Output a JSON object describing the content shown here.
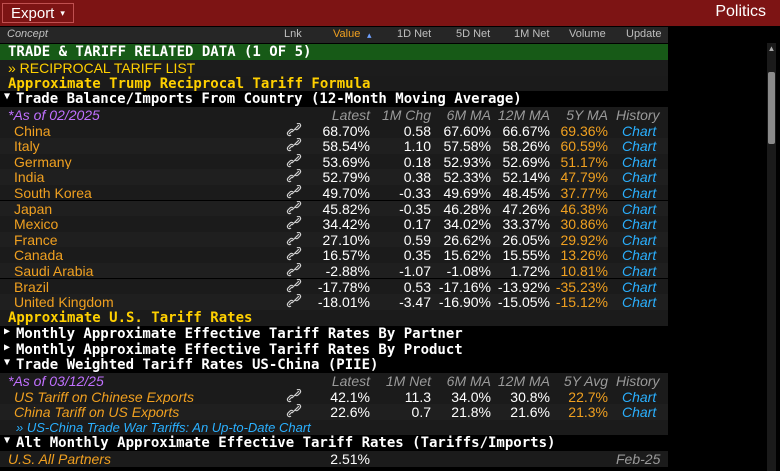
{
  "topbar": {
    "export_label": "Export",
    "export_caret": "▾",
    "title": "Politics"
  },
  "columns": {
    "concept": "Concept",
    "lnk": "Lnk",
    "value": "Value",
    "value_sort": "▴",
    "d1": "1D Net",
    "d5": "5D Net",
    "m1": "1M Net",
    "volume": "Volume",
    "update": "Update"
  },
  "sections": {
    "trade_title": "TRADE & TARIFF RELATED DATA (1 OF 5)",
    "reciprocal_link": "» RECIPROCAL TARIFF LIST",
    "approx_formula": "Approximate Trump Reciprocal Tariff Formula",
    "trade_balance": "Trade Balance/Imports From Country (12-Month Moving Average)",
    "approx_us": "Approximate U.S. Tariff Rates",
    "monthly_partner": "Monthly Approximate Effective Tariff Rates By Partner",
    "monthly_product": "Monthly Approximate Effective Tariff Rates By Product",
    "trade_weighted": "Trade Weighted Tariff Rates US-China (PIIE)",
    "us_china_link": "» US-China Trade War Tariffs: An Up-to-Date Chart",
    "alt_monthly": "Alt Monthly Approximate Effective Tariff Rates (Tariffs/Imports)"
  },
  "table1": {
    "as_of": "*As of 02/2025",
    "headers": [
      "Latest",
      "1M Chg",
      "6M MA",
      "12M MA",
      "5Y MA",
      "History"
    ],
    "rows": [
      {
        "name": "China",
        "latest": "68.70%",
        "chg": "0.58",
        "m6": "67.60%",
        "m12": "66.67%",
        "y5": "69.36%",
        "hist": "Chart"
      },
      {
        "name": "Italy",
        "latest": "58.54%",
        "chg": "1.10",
        "m6": "57.58%",
        "m12": "58.26%",
        "y5": "60.59%",
        "hist": "Chart"
      },
      {
        "name": "Germany",
        "latest": "53.69%",
        "chg": "0.18",
        "m6": "52.93%",
        "m12": "52.69%",
        "y5": "51.17%",
        "hist": "Chart"
      },
      {
        "name": "India",
        "latest": "52.79%",
        "chg": "0.38",
        "m6": "52.33%",
        "m12": "52.14%",
        "y5": "47.79%",
        "hist": "Chart"
      },
      {
        "name": "South Korea",
        "latest": "49.70%",
        "chg": "-0.33",
        "m6": "49.69%",
        "m12": "48.45%",
        "y5": "37.77%",
        "hist": "Chart"
      },
      {
        "name": "Japan",
        "latest": "45.82%",
        "chg": "-0.35",
        "m6": "46.28%",
        "m12": "47.26%",
        "y5": "46.38%",
        "hist": "Chart"
      },
      {
        "name": "Mexico",
        "latest": "34.42%",
        "chg": "0.17",
        "m6": "34.02%",
        "m12": "33.37%",
        "y5": "30.86%",
        "hist": "Chart"
      },
      {
        "name": "France",
        "latest": "27.10%",
        "chg": "0.59",
        "m6": "26.62%",
        "m12": "26.05%",
        "y5": "29.92%",
        "hist": "Chart"
      },
      {
        "name": "Canada",
        "latest": "16.57%",
        "chg": "0.35",
        "m6": "15.62%",
        "m12": "15.55%",
        "y5": "13.26%",
        "hist": "Chart"
      },
      {
        "name": "Saudi Arabia",
        "latest": "-2.88%",
        "chg": "-1.07",
        "m6": "-1.08%",
        "m12": "1.72%",
        "y5": "10.81%",
        "hist": "Chart"
      },
      {
        "name": "Brazil",
        "latest": "-17.78%",
        "chg": "0.53",
        "m6": "-17.16%",
        "m12": "-13.92%",
        "y5": "-35.23%",
        "hist": "Chart"
      },
      {
        "name": "United Kingdom",
        "latest": "-18.01%",
        "chg": "-3.47",
        "m6": "-16.90%",
        "m12": "-15.05%",
        "y5": "-15.12%",
        "hist": "Chart"
      }
    ]
  },
  "table2": {
    "as_of": "*As of 03/12/25",
    "headers": [
      "Latest",
      "1M Net",
      "6M MA",
      "12M MA",
      "5Y Avg",
      "History"
    ],
    "rows": [
      {
        "name": "US Tariff on Chinese Exports",
        "latest": "42.1%",
        "chg": "11.3",
        "m6": "34.0%",
        "m12": "30.8%",
        "y5": "22.7%",
        "hist": "Chart"
      },
      {
        "name": "China Tariff on US Exports",
        "latest": "22.6%",
        "chg": "0.7",
        "m6": "21.8%",
        "m12": "21.6%",
        "y5": "21.3%",
        "hist": "Chart"
      }
    ]
  },
  "last_row": {
    "name": "U.S. All Partners",
    "latest": "2.51%",
    "update": "Feb-25"
  },
  "icons": {
    "link": "link-icon",
    "expand": "triangle-down-icon",
    "collapse": "triangle-right-icon"
  }
}
